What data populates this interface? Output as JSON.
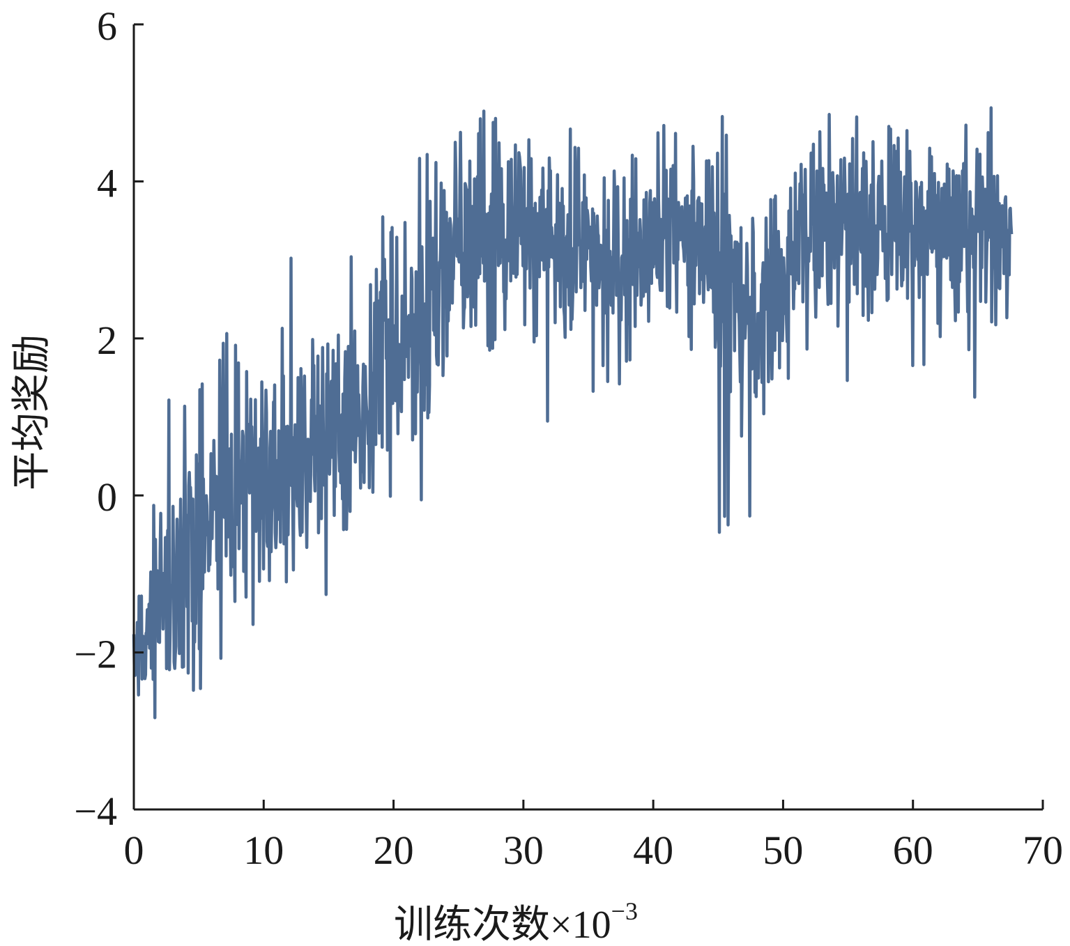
{
  "chart_data": {
    "type": "line",
    "title": "",
    "xlabel": "训练次数×10",
    "xlabel_superscript": "−3",
    "ylabel": "平均奖励",
    "xlim": [
      0,
      70
    ],
    "ylim": [
      -4,
      6
    ],
    "xticks": [
      0,
      10,
      20,
      30,
      40,
      50,
      60,
      70
    ],
    "yticks": [
      -4,
      -2,
      0,
      2,
      4,
      6
    ],
    "xtick_labels": [
      "0",
      "10",
      "20",
      "30",
      "40",
      "50",
      "60",
      "70"
    ],
    "ytick_labels": [
      "−4",
      "−2",
      "0",
      "2",
      "4",
      "6"
    ],
    "grid": false,
    "legend": "none",
    "line_color": "#4f6d94",
    "series": [
      {
        "x": [
          0,
          1,
          2,
          3,
          4,
          5,
          6,
          7,
          8,
          9,
          10,
          11,
          12,
          13,
          14,
          15,
          16,
          17,
          18,
          19,
          20,
          21,
          22,
          23,
          24,
          25,
          26,
          27,
          28,
          29,
          30,
          31,
          32,
          33,
          34,
          35,
          36,
          37,
          38,
          39,
          40,
          41,
          42,
          43,
          44,
          45,
          46,
          47,
          48,
          49,
          50,
          51,
          52,
          53,
          54,
          55,
          56,
          57,
          58,
          59,
          60,
          61,
          62,
          63,
          64,
          65,
          66,
          67,
          67.6
        ],
        "y_mean": [
          -2.0,
          -1.7,
          -1.4,
          -1.0,
          -0.6,
          -0.4,
          -0.2,
          0.1,
          0.0,
          0.1,
          0.2,
          0.0,
          0.2,
          0.5,
          0.6,
          0.7,
          0.8,
          1.0,
          1.3,
          1.6,
          1.8,
          2.0,
          2.3,
          2.5,
          2.8,
          3.1,
          3.3,
          3.4,
          3.5,
          3.6,
          3.4,
          3.3,
          3.4,
          3.3,
          3.2,
          3.3,
          3.0,
          3.1,
          3.2,
          3.2,
          3.3,
          3.2,
          3.4,
          3.3,
          3.2,
          3.1,
          2.6,
          2.2,
          2.2,
          2.4,
          2.8,
          3.0,
          3.2,
          3.3,
          3.4,
          3.5,
          3.4,
          3.5,
          3.4,
          3.3,
          3.4,
          3.5,
          3.5,
          3.3,
          3.4,
          3.5,
          3.4,
          3.4,
          3.3
        ],
        "y_max": [
          -1.5,
          -0.7,
          0.6,
          1.5,
          1.3,
          1.5,
          1.2,
          2.3,
          2.0,
          1.9,
          1.6,
          1.5,
          3.2,
          3.1,
          2.8,
          2.7,
          2.1,
          3.4,
          3.7,
          3.7,
          3.6,
          3.6,
          4.5,
          4.3,
          4.1,
          4.8,
          4.8,
          4.9,
          5.0,
          4.9,
          4.4,
          4.8,
          4.4,
          4.8,
          4.6,
          4.1,
          4.0,
          4.3,
          4.3,
          4.4,
          4.4,
          5.0,
          4.5,
          4.5,
          4.4,
          5.1,
          4.3,
          3.4,
          3.6,
          3.8,
          4.2,
          4.1,
          4.4,
          4.9,
          5.0,
          5.1,
          4.9,
          4.7,
          4.7,
          4.7,
          4.6,
          4.6,
          4.4,
          4.4,
          4.8,
          4.6,
          5.0,
          4.4,
          4.4
        ],
        "y_min": [
          -2.7,
          -3.2,
          -2.8,
          -2.2,
          -2.4,
          -2.7,
          -2.3,
          -2.1,
          -1.5,
          -1.8,
          -1.4,
          -1.3,
          -1.3,
          -1.2,
          -0.9,
          -1.9,
          -1.1,
          0.0,
          -0.4,
          -1.1,
          -0.1,
          1.3,
          -0.1,
          -0.5,
          0.9,
          0.8,
          1.5,
          1.6,
          1.8,
          2.3,
          2.0,
          1.8,
          0.7,
          1.8,
          1.4,
          1.1,
          1.5,
          1.3,
          1.6,
          1.0,
          1.8,
          1.9,
          1.9,
          1.6,
          1.8,
          -0.7,
          -0.3,
          -0.4,
          -0.5,
          -0.7,
          1.7,
          1.0,
          1.8,
          2.1,
          2.2,
          1.3,
          1.9,
          2.2,
          2.3,
          1.8,
          1.5,
          1.6,
          2.0,
          2.0,
          2.2,
          0.9,
          2.2,
          2.0,
          2.0
        ]
      }
    ]
  }
}
